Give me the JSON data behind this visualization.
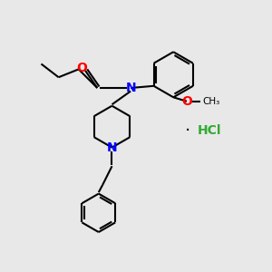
{
  "background_color": "#e8e8e8",
  "bond_color": "#000000",
  "N_color": "#0000ff",
  "O_color": "#ff0000",
  "Cl_color": "#33aa33",
  "line_width": 1.5,
  "font_size": 9,
  "figsize": [
    3.0,
    3.0
  ],
  "dpi": 100,
  "xlim": [
    0,
    10
  ],
  "ylim": [
    0,
    10
  ],
  "HCl_x": 7.3,
  "HCl_y": 5.2
}
